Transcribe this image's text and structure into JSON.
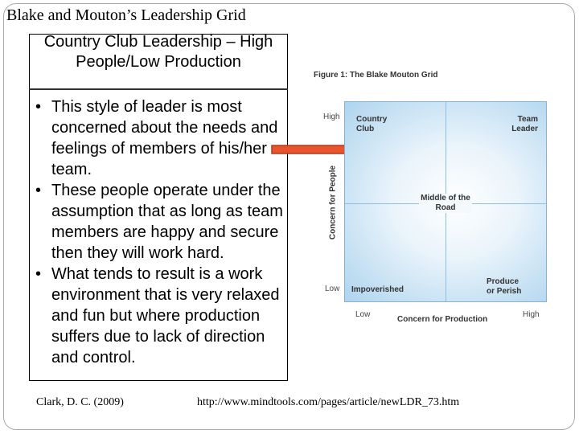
{
  "slide": {
    "title": "Blake and Mouton’s Leadership Grid",
    "box_title": "Country Club Leadership – High People/Low Production",
    "bullets": [
      "This style of leader is most concerned about the needs and feelings of members of his/her team.",
      "These people operate under the assumption that as long as team members are happy and secure then they will work hard.",
      "What tends to result is a work environment that is very relaxed and fun but where production suffers due to lack of direction and control."
    ],
    "bullet_glyph": "•",
    "citation": "Clark, D. C. (2009)",
    "url": "http://www.mindtools.com/pages/article/newLDR_73.htm",
    "arrow_color": "#e8542c"
  },
  "figure": {
    "caption": "Figure 1: The Blake Mouton Grid",
    "quadrants": {
      "top_left": "Country Club",
      "top_right": "Team Leader",
      "center": "Middle of the Road",
      "bottom_left": "Impoverished",
      "bottom_right": "Produce or Perish"
    },
    "y_axis": {
      "label": "Concern for People",
      "high": "High",
      "low": "Low"
    },
    "x_axis": {
      "label": "Concern for Production",
      "low": "Low",
      "high": "High"
    }
  }
}
